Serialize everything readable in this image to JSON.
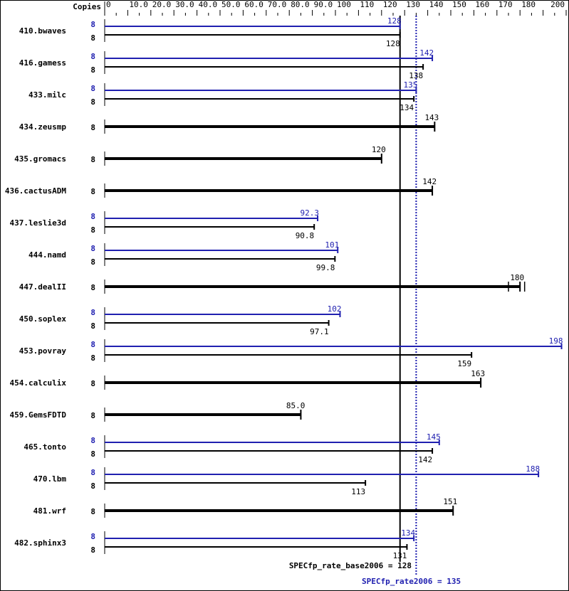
{
  "chart_data": {
    "type": "bar",
    "orientation": "horizontal",
    "axis_title": "Copies",
    "tick_labels": [
      "0",
      "10.0",
      "20.0",
      "30.0",
      "40.0",
      "50.0",
      "60.0",
      "70.0",
      "80.0",
      "90.0",
      "100",
      "110",
      "120",
      "130",
      "140",
      "150",
      "160",
      "170",
      "180",
      "200"
    ],
    "xlim": [
      0,
      200
    ],
    "colors": {
      "base": "#000000",
      "peak": "#2020b0"
    },
    "benchmarks": [
      {
        "name": "410.bwaves",
        "copies_peak": "8",
        "copies_base": "8",
        "peak": 128,
        "base": 128,
        "peak_label": "128",
        "base_label": "128"
      },
      {
        "name": "416.gamess",
        "copies_peak": "8",
        "copies_base": "8",
        "peak": 142,
        "base": 138,
        "peak_label": "142",
        "base_label": "138"
      },
      {
        "name": "433.milc",
        "copies_peak": "8",
        "copies_base": "8",
        "peak": 135,
        "base": 134,
        "peak_label": "135",
        "base_label": "134"
      },
      {
        "name": "434.zeusmp",
        "copies_base": "8",
        "base": 143,
        "base_label": "143"
      },
      {
        "name": "435.gromacs",
        "copies_base": "8",
        "base": 120,
        "base_label": "120"
      },
      {
        "name": "436.cactusADM",
        "copies_base": "8",
        "base": 142,
        "base_label": "142"
      },
      {
        "name": "437.leslie3d",
        "copies_peak": "8",
        "copies_base": "8",
        "peak": 92.3,
        "base": 90.8,
        "peak_label": "92.3",
        "base_label": "90.8"
      },
      {
        "name": "444.namd",
        "copies_peak": "8",
        "copies_base": "8",
        "peak": 101,
        "base": 99.8,
        "peak_label": "101",
        "base_label": "99.8"
      },
      {
        "name": "447.dealII",
        "copies_base": "8",
        "base": 180,
        "base_label": "180",
        "runs": [
          175,
          180,
          182
        ]
      },
      {
        "name": "450.soplex",
        "copies_peak": "8",
        "copies_base": "8",
        "peak": 102,
        "base": 97.1,
        "peak_label": "102",
        "base_label": "97.1"
      },
      {
        "name": "453.povray",
        "copies_peak": "8",
        "copies_base": "8",
        "peak": 198,
        "base": 159,
        "peak_label": "198",
        "base_label": "159"
      },
      {
        "name": "454.calculix",
        "copies_base": "8",
        "base": 163,
        "base_label": "163"
      },
      {
        "name": "459.GemsFDTD",
        "copies_base": "8",
        "base": 85.0,
        "base_label": "85.0"
      },
      {
        "name": "465.tonto",
        "copies_peak": "8",
        "copies_base": "8",
        "peak": 145,
        "base": 142,
        "peak_label": "145",
        "base_label": "142"
      },
      {
        "name": "470.lbm",
        "copies_peak": "8",
        "copies_base": "8",
        "peak": 188,
        "base": 113,
        "peak_label": "188",
        "base_label": "113"
      },
      {
        "name": "481.wrf",
        "copies_base": "8",
        "base": 151,
        "base_label": "151"
      },
      {
        "name": "482.sphinx3",
        "copies_peak": "8",
        "copies_base": "8",
        "peak": 134,
        "base": 131,
        "peak_label": "134",
        "base_label": "131"
      }
    ],
    "base_summary": {
      "label": "SPECfp_rate_base2006 = 128",
      "value": 128
    },
    "peak_summary": {
      "label": "SPECfp_rate2006 = 135",
      "value": 135
    }
  }
}
